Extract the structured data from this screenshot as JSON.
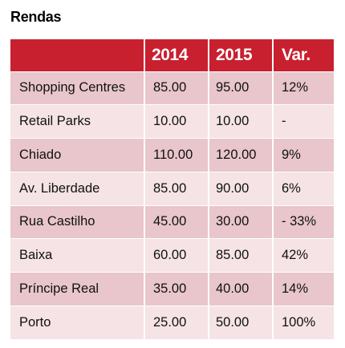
{
  "title": "Rendas",
  "table": {
    "headers": [
      "",
      "2014",
      "2015",
      "Var."
    ],
    "rows": [
      [
        "Shopping Centres",
        "85.00",
        "95.00",
        "12%"
      ],
      [
        "Retail Parks",
        "10.00",
        "10.00",
        "-"
      ],
      [
        "Chiado",
        "110.00",
        "120.00",
        "9%"
      ],
      [
        "Av. Liberdade",
        "85.00",
        "90.00",
        "6%"
      ],
      [
        "Rua Castilho",
        "45.00",
        "30.00",
        "- 33%"
      ],
      [
        "Baixa",
        "60.00",
        "85.00",
        "42%"
      ],
      [
        "Príncipe Real",
        "35.00",
        "40.00",
        "14%"
      ],
      [
        "Porto",
        "25.00",
        "50.00",
        "100%"
      ]
    ]
  },
  "colors": {
    "header_bg": "#c8202f",
    "row_dark": "#e8c6cb",
    "row_light": "#f5e3e6"
  }
}
